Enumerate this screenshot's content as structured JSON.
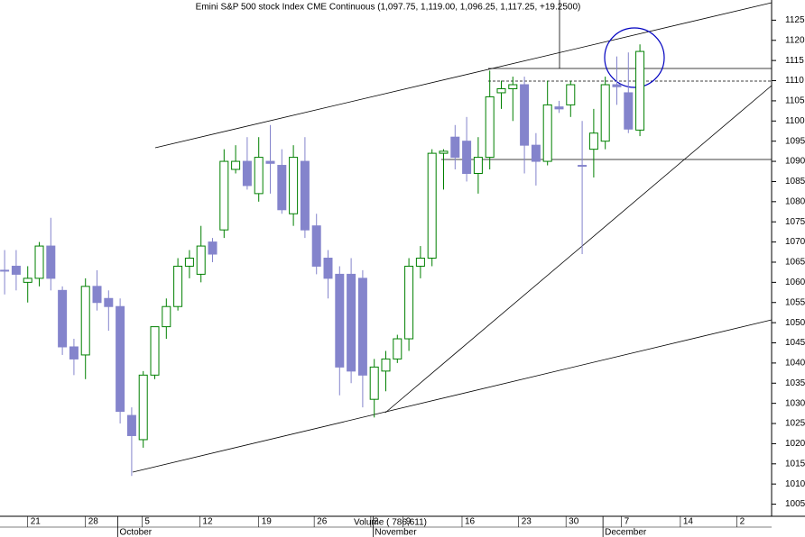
{
  "chart_data": {
    "type": "candlestick",
    "title": "Emini S&P 500 stock Index CME Continuous (1,097.75, 1,119.00, 1,096.25, 1,117.25, +19.2500)",
    "volume_label": "Volume ( 786,611)",
    "up_color": "#008000",
    "down_color": "#8484cc",
    "x": [
      0,
      1,
      2,
      3,
      4,
      5,
      6,
      7,
      8,
      9,
      10,
      11,
      12,
      13,
      14,
      15,
      16,
      17,
      18,
      19,
      20,
      21,
      22,
      23,
      24,
      25,
      26,
      27,
      28,
      29,
      30,
      31,
      32,
      33,
      34,
      35,
      36,
      37,
      38,
      39,
      40,
      41,
      42,
      43,
      44,
      45,
      46,
      47,
      48,
      49,
      50,
      51,
      52,
      53,
      54,
      55
    ],
    "open": [
      1063,
      1064,
      1060,
      1061,
      1069,
      1058,
      1044,
      1042,
      1059,
      1056,
      1054,
      1027,
      1021,
      1037,
      1049,
      1054,
      1064,
      1062,
      1070,
      1073,
      1088,
      1090,
      1082,
      1090,
      1089,
      1077,
      1090,
      1074,
      1066,
      1062,
      1062,
      1061,
      1031,
      1038,
      1041,
      1046,
      1064,
      1066,
      1092,
      1096,
      1095,
      1087,
      1091,
      1107,
      1108,
      1109,
      1094,
      1090,
      1103.5,
      1104,
      1089,
      1093,
      1095,
      1109,
      1107,
      1097.75
    ],
    "high": [
      1068,
      1068,
      1064,
      1070,
      1076,
      1059,
      1046,
      1061,
      1063,
      1058,
      1056,
      1029,
      1038,
      1049,
      1056,
      1066,
      1068,
      1074,
      1071,
      1093,
      1094,
      1096,
      1096,
      1099,
      1093,
      1094,
      1096,
      1077,
      1068,
      1064,
      1066,
      1063,
      1041,
      1043,
      1047,
      1066,
      1069,
      1093,
      1093,
      1099,
      1101,
      1096,
      1112.5,
      1110,
      1111,
      1111,
      1097,
      1110,
      1105,
      1110,
      1100,
      1103,
      1111,
      1116,
      1117,
      1119
    ],
    "low": [
      1057,
      1058,
      1055,
      1059,
      1058,
      1042,
      1037,
      1036,
      1053,
      1048,
      1025,
      1012,
      1019,
      1036,
      1046,
      1053,
      1061,
      1060,
      1065,
      1071,
      1087,
      1083,
      1080,
      1082,
      1077,
      1074,
      1071,
      1062,
      1056,
      1032,
      1035,
      1029,
      1026.5,
      1033,
      1040,
      1043,
      1061,
      1064,
      1083,
      1088,
      1085,
      1082,
      1088,
      1103,
      1100,
      1087,
      1084,
      1089,
      1102,
      1101,
      1067,
      1086,
      1093,
      1104,
      1097,
      1096.25
    ],
    "close": [
      1063,
      1062,
      1061,
      1069,
      1061,
      1044,
      1041,
      1059,
      1055,
      1054,
      1028,
      1022,
      1037,
      1049,
      1054,
      1064,
      1066,
      1069,
      1067,
      1090,
      1090,
      1084,
      1091,
      1089.5,
      1078,
      1091,
      1073,
      1064,
      1061,
      1039,
      1038,
      1037,
      1039,
      1041,
      1046,
      1064,
      1066,
      1092,
      1092.5,
      1091,
      1087,
      1091,
      1106,
      1108,
      1109,
      1094,
      1090,
      1104,
      1103,
      1109,
      1089,
      1097,
      1109,
      1108.5,
      1098,
      1117.25
    ],
    "xlim": [
      -0.4,
      66.4
    ],
    "xticks": [
      {
        "value": 2,
        "label": "21"
      },
      {
        "value": 7,
        "label": "28"
      },
      {
        "value": 11.9,
        "label": "5"
      },
      {
        "value": 16.9,
        "label": "12"
      },
      {
        "value": 22,
        "label": "19"
      },
      {
        "value": 26.8,
        "label": "26"
      },
      {
        "value": 31.7,
        "label": "2"
      },
      {
        "value": 34.5,
        "label": "9"
      },
      {
        "value": 39.6,
        "label": "16"
      },
      {
        "value": 44.5,
        "label": "23"
      },
      {
        "value": 48.6,
        "label": "30"
      },
      {
        "value": 53.4,
        "label": "7"
      },
      {
        "value": 58.5,
        "label": "14"
      },
      {
        "value": 63.4,
        "label": "2"
      }
    ],
    "month_ticks": [
      {
        "value": 9.8,
        "label": "October"
      },
      {
        "value": 31.9,
        "label": "November"
      },
      {
        "value": 51.8,
        "label": "December"
      }
    ],
    "ylim": [
      1002,
      1130
    ],
    "yticks": [
      1005,
      1010,
      1015,
      1020,
      1025,
      1030,
      1035,
      1040,
      1045,
      1050,
      1055,
      1060,
      1065,
      1070,
      1075,
      1080,
      1085,
      1090,
      1095,
      1100,
      1105,
      1110,
      1115,
      1120,
      1125
    ],
    "grid": false
  }
}
